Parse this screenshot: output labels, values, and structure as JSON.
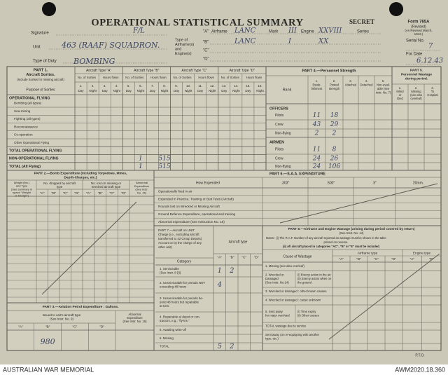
{
  "header": {
    "title": "OPERATIONAL STATISTICAL SUMMARY",
    "secret": "SECRET",
    "form": "Form 765A",
    "form_revised": "(Revised)",
    "form_note": [
      "(As Revised March,",
      "1943.)"
    ],
    "signature_label": "Signature",
    "signature": "F/L",
    "unit_label": "Unit",
    "unit": "463 (RAAF) SQUADRON.",
    "duty_label": "Type of Duty",
    "duty": "BOMBING",
    "aircraft_label": [
      "Type of",
      "Airframe(s)",
      "and",
      "Engine(s)"
    ],
    "airframe_label": "Airframe",
    "mark_label": "Mark",
    "engine_label": "Engine",
    "series_label": "Series",
    "aircraft": [
      {
        "letter": "\"A\"",
        "airframe": "LANC",
        "mark": "III",
        "engine": "XXVIII"
      },
      {
        "letter": "\"B\"",
        "airframe": "LANC",
        "mark": "I",
        "engine": "XX"
      },
      {
        "letter": "\"C\""
      },
      {
        "letter": "\"D\""
      }
    ],
    "serial_label": "Serial No.",
    "serial": "7",
    "date_label": "For Date",
    "date": "6.12.43"
  },
  "part1": {
    "title": [
      "PART 1.",
      "Aircraft Sorties."
    ],
    "note": "(Include Sorties for missing aircraft)",
    "purpose_label": "Purpose of Sorties",
    "groups": [
      "Aircraft Type \"A\"",
      "Aircraft Type \"B\"",
      "Aircraft Type \"C\"",
      "Aircraft Type \"D\""
    ],
    "sub": [
      "No. of Sorties",
      "Hours flown"
    ],
    "cols": [
      "1.",
      "2.",
      "3.",
      "4.",
      "5.",
      "6.",
      "7.",
      "8.",
      "9.",
      "10.",
      "11.",
      "12.",
      "13.",
      "14.",
      "15.",
      "16."
    ],
    "day_night": [
      "Day",
      "Night"
    ],
    "section": "OPERATIONAL FLYING",
    "rows": [
      "Bombing (all types)",
      "Sea-mining",
      "Fighting (all types)",
      "Reconnaissance",
      "Co-operation",
      "Other Operational Flying"
    ],
    "totals": [
      {
        "label": "TOTAL OPERATIONAL FLYING"
      },
      {
        "label": "NON-OPERATIONAL FLYING",
        "entries": {
          "6": "1",
          "8": "515"
        }
      },
      {
        "label": "TOTAL (All Flying)",
        "entries": {
          "6": "1",
          "8": "515"
        }
      }
    ]
  },
  "part4": {
    "title": "PART 4.—Personnel Strength",
    "rank_label": "Rank",
    "cols": [
      [
        "1.",
        "Estab-",
        "lishment"
      ],
      [
        "2.",
        "Posted",
        "strength"
      ],
      [
        "3.",
        "Attached"
      ],
      [
        "4.",
        "Detached"
      ],
      [
        "5.",
        "Non-avail-",
        "able (see",
        "Instr. No. 7)"
      ]
    ],
    "groups": [
      {
        "label": "OFFICERS",
        "rows": [
          {
            "label": "Pilots",
            "values": [
              "11",
              "18"
            ]
          },
          {
            "label": "Crew",
            "values": [
              "43",
              "29"
            ]
          },
          {
            "label": "Non-flying",
            "values": [
              "2",
              "2"
            ]
          }
        ]
      },
      {
        "label": "AIRMEN",
        "rows": [
          {
            "label": "Pilots",
            "values": [
              "11",
              "8"
            ]
          },
          {
            "label": "Crew",
            "values": [
              "24",
              "26"
            ]
          },
          {
            "label": "Non-flying",
            "values": [
              "24",
              "106"
            ]
          }
        ]
      }
    ]
  },
  "part5": {
    "title": [
      "PART 5.",
      "Personnel Wastage",
      "during period."
    ],
    "cols": [
      [
        "1.",
        "Killed",
        "or",
        "Died"
      ],
      [
        "2.",
        "Missing",
        "(see also",
        "overleaf)"
      ],
      [
        "3.",
        "To",
        "Hospital"
      ]
    ]
  },
  "part2": {
    "title": [
      "PART 2.—Bomb Expenditure (including Torpedoes, Mines,",
      "Depth-Charges, etc.)"
    ],
    "weight_label": [
      "Weight (lbs.)",
      "and Type",
      "(See summary in",
      "space \"Weight",
      "or Design\")"
    ],
    "dropped_label": [
      "No. dropped by aircraft",
      "type"
    ],
    "lost_label": [
      "No. lost on missing or",
      "wrecked aircraft type"
    ],
    "abnormal_label": [
      "Abnormal",
      "Expenditure",
      "(See Instr.",
      "No. 15)"
    ],
    "letters": [
      "\"A\"",
      "\"B\"",
      "\"C\"",
      "\"D\""
    ]
  },
  "part6": {
    "title": "PART 6.—S.A.A. EXPENDITURE",
    "how_label": "How Expended",
    "calibres": [
      ".303\"",
      ".500\"",
      ".5\"",
      "20mm."
    ],
    "rows": [
      "Operationally fired in air",
      "Expended in Practice, Training or Butt Tests (Aircraft)",
      "Rounds lost on Wrecked or Missing Aircraft",
      "Ground Defence Expenditure, operational and training",
      "Abnormal expenditure (See Instruction No. 15)"
    ]
  },
  "part7": {
    "title": [
      "PART 7.—Aircraft on UNIT",
      "Charge (i.e., excluding aircraft",
      "transferred to 42 Group Depots)",
      "Account or by the charge of any",
      "other unit)"
    ],
    "aircraft_type_label": "Aircraft type",
    "category_label": "Category",
    "letters": [
      "\"A\"",
      "\"B\"",
      "\"C\"",
      "\"D\""
    ],
    "rows": [
      {
        "label": [
          "1. Serviceable",
          "(See Instr. 8 (i))"
        ],
        "values": {
          "0": "1",
          "1": "2"
        }
      },
      {
        "label": [
          "2. Unserviceable for periods NOT",
          "exceeding 48 hours"
        ],
        "values": {
          "0": "4"
        }
      },
      {
        "label": [
          "3. Unserviceable for periods be-",
          "yond 48 hours but repairable",
          "at Unit."
        ]
      },
      {
        "label": [
          "4. Repairable at depot or con-",
          "tractors, e.g., \"fly-ins.\""
        ]
      },
      {
        "label": [
          "5. Awaiting write-off"
        ]
      },
      {
        "label": [
          "6. Missing"
        ]
      },
      {
        "label": [
          "TOTAL"
        ],
        "values": {
          "0": "5",
          "1": "2"
        }
      }
    ]
  },
  "part8": {
    "title": "PART 8.—Airframe and Engine Wastage (arising during period covered by return)",
    "instr": "(See Instr. No. 14)",
    "notes": [
      "Notes : (i) The R.A.F. Number of any aircraft reported as wastage must be shown in the table",
      "printed on reverse.",
      "(ii) All aircraft placed in categories \"AC\", \"B\" or \"E\" must be included."
    ],
    "cause_label": "Cause of Wastage",
    "airframe_label": "Airframe type",
    "engine_label": "Engine type",
    "airframe_letters": [
      "\"A\"",
      "\"B\"",
      "\"C\"",
      "\"D\""
    ],
    "engine_letters": [
      "\"A\"",
      "\"B\""
    ],
    "rows": [
      {
        "label": [
          "1. Missing (see also overleaf)"
        ]
      },
      {
        "label": [
          "2. Wrecked or",
          "Damaged",
          "(See Instr. No.14)"
        ],
        "sub": [
          "(i) Enemy action in the air.",
          "(ii) Enemy action when on",
          "the ground"
        ]
      },
      {
        "label": [
          "3. Wrecked or damaged : other known causes"
        ]
      },
      {
        "label": [
          "4. Wrecked or damaged : cause unknown"
        ]
      },
      {
        "label": [
          "5. Sent away",
          "for major overhaul"
        ],
        "sub": [
          "(i) Time expiry",
          "(ii) Other causes"
        ]
      },
      {
        "label": [
          "TOTAL wastage due to service"
        ]
      },
      {
        "label": [
          "Sent away (on re-equipping with another",
          "type, etc.)"
        ]
      }
    ]
  },
  "part3": {
    "title": "PART 3.—Aviation Petrol Expenditure : Gallons.",
    "issued_label": [
      "Issued to unit's aircraft type",
      "(See Instr. No. 9)"
    ],
    "abnormal_label": [
      "Abnormal",
      "Expenditure",
      "(See Instr. No. 15)"
    ],
    "letters": [
      "\"A\"",
      "\"B\"",
      "\"C\"",
      "\"D\""
    ],
    "values": {
      "0": "980"
    }
  },
  "pto": "P.T.O.",
  "footer": {
    "left": "AUSTRALIAN WAR MEMORIAL",
    "right": "AWM2020.18.360"
  }
}
